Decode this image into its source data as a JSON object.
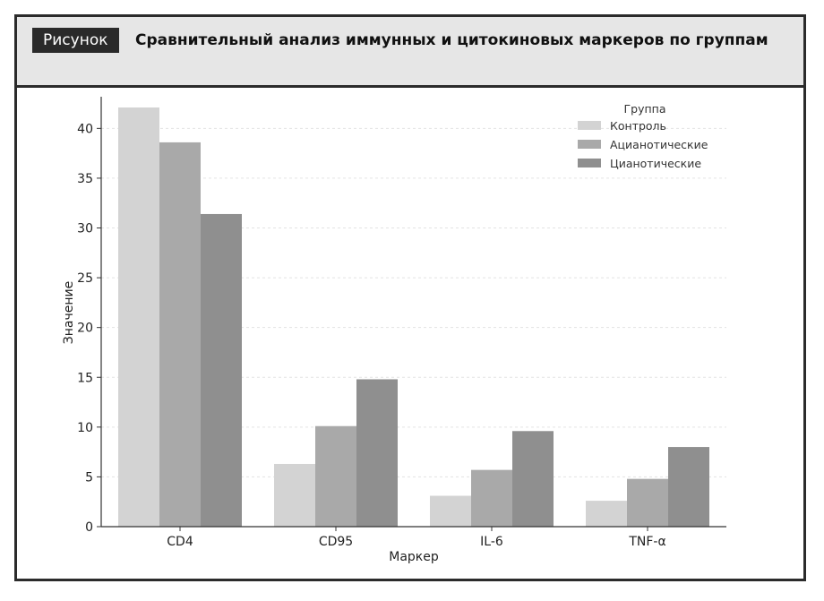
{
  "header": {
    "tag": "Рисунок",
    "title": "Сравнительный анализ иммунных и цитокиновых маркеров по группам"
  },
  "chart_data": {
    "type": "bar",
    "title": "",
    "xlabel": "Маркер",
    "ylabel": "Значение",
    "categories": [
      "CD4",
      "CD95",
      "IL-6",
      "TNF-α"
    ],
    "ylim": [
      0,
      43
    ],
    "yticks": [
      0,
      5,
      10,
      15,
      20,
      25,
      30,
      35,
      40
    ],
    "grid": "horizontal dashed",
    "legend": {
      "title": "Группа",
      "placement": "top-right"
    },
    "series": [
      {
        "name": "Контроль",
        "color": "#d3d3d3",
        "values": [
          42.1,
          6.3,
          3.1,
          2.6
        ]
      },
      {
        "name": "Ацианотические",
        "color": "#a9a9a9",
        "values": [
          38.6,
          10.1,
          5.7,
          4.8
        ]
      },
      {
        "name": "Цианотические",
        "color": "#8f8f8f",
        "values": [
          31.4,
          14.8,
          9.6,
          8.0
        ]
      }
    ]
  }
}
